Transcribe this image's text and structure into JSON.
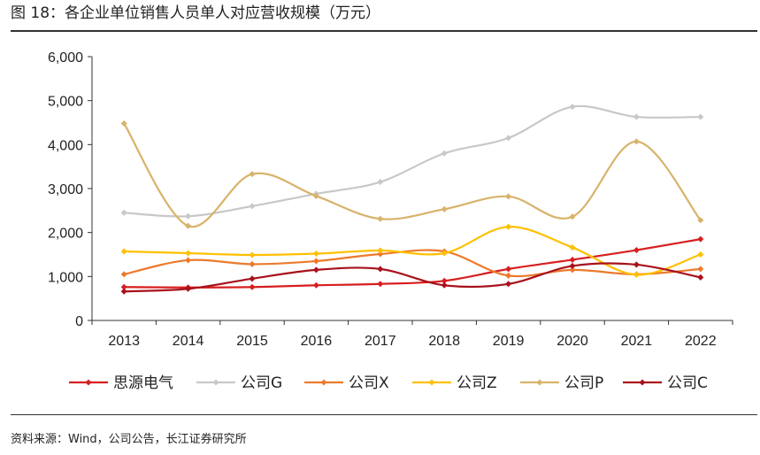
{
  "header": {
    "title": "图 18：各企业单位销售人员单人对应营收规模（万元）"
  },
  "footer": {
    "source": "资料来源：Wind，公司公告，长江证券研究所"
  },
  "chart_data": {
    "type": "line",
    "title": "图 18：各企业单位销售人员单人对应营收规模（万元）",
    "xlabel": "",
    "ylabel": "",
    "x": [
      "2013",
      "2014",
      "2015",
      "2016",
      "2017",
      "2018",
      "2019",
      "2020",
      "2021",
      "2022"
    ],
    "ylim": [
      0,
      6000
    ],
    "yticks": [
      0,
      1000,
      2000,
      3000,
      4000,
      5000,
      6000
    ],
    "ytick_labels": [
      "0",
      "1,000",
      "2,000",
      "3,000",
      "4,000",
      "5,000",
      "6,000"
    ],
    "grid": false,
    "legend_position": "bottom",
    "smooth": true,
    "series": [
      {
        "name": "思源电气",
        "color": "#d71f1f",
        "values": [
          760,
          750,
          760,
          800,
          830,
          900,
          1170,
          1380,
          1600,
          1850
        ]
      },
      {
        "name": "公司G",
        "color": "#c8c8c8",
        "values": [
          2450,
          2370,
          2600,
          2880,
          3150,
          3800,
          4150,
          4860,
          4630,
          4630
        ]
      },
      {
        "name": "公司X",
        "color": "#ec7a2c",
        "values": [
          1050,
          1370,
          1280,
          1350,
          1510,
          1570,
          1020,
          1150,
          1050,
          1170
        ]
      },
      {
        "name": "公司Z",
        "color": "#ffc000",
        "values": [
          1570,
          1530,
          1490,
          1520,
          1590,
          1530,
          2130,
          1660,
          1040,
          1500
        ]
      },
      {
        "name": "公司P",
        "color": "#d8b36a",
        "values": [
          4480,
          2150,
          3330,
          2830,
          2310,
          2530,
          2820,
          2360,
          4070,
          2280
        ]
      },
      {
        "name": "公司C",
        "color": "#a8111b",
        "values": [
          660,
          720,
          950,
          1150,
          1170,
          800,
          830,
          1240,
          1270,
          980
        ]
      }
    ]
  }
}
